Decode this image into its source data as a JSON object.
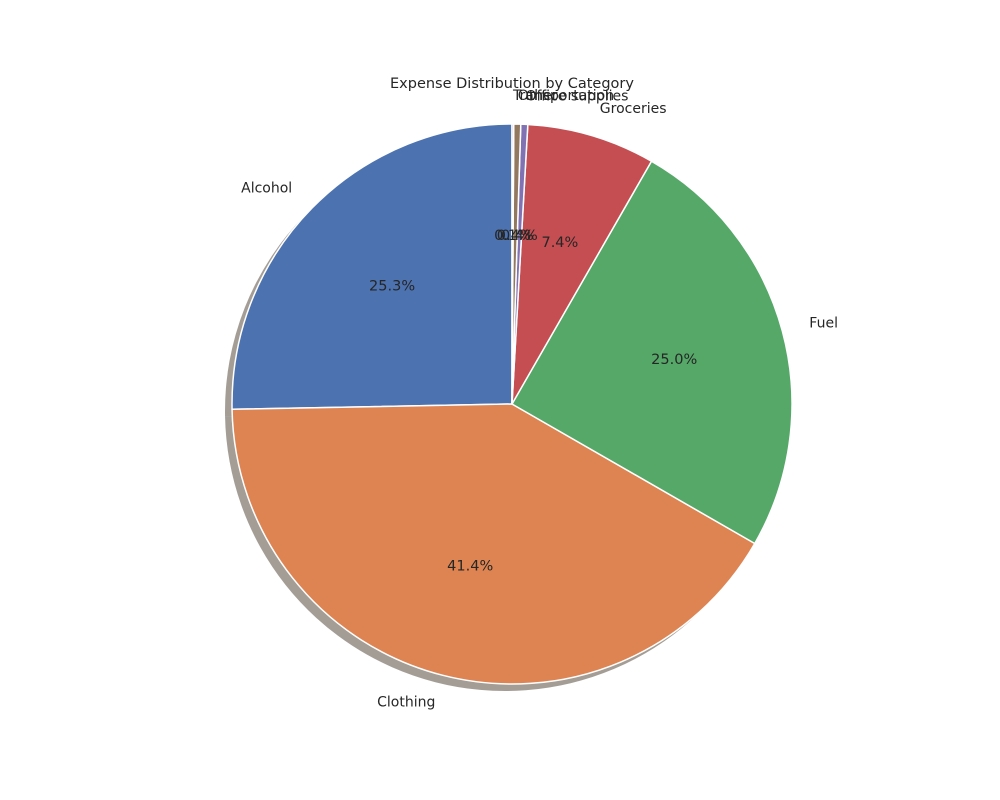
{
  "chart_data": {
    "type": "pie",
    "title": "Expense Distribution by Category",
    "categories": [
      "Alcohol",
      "Clothing",
      "Fuel",
      "Groceries",
      "Office supplies",
      "Other",
      "Transportation"
    ],
    "values": [
      25.3,
      41.4,
      25.0,
      7.4,
      0.4,
      0.4,
      0.1
    ],
    "percent_labels": [
      "25.3%",
      "41.4%",
      "25.0%",
      "7.4%",
      "0.4%",
      "0.4%",
      "0.1%"
    ],
    "colors": [
      "#4c72b0",
      "#dd8452",
      "#55a868",
      "#c44e52",
      "#8172b3",
      "#937860",
      "#da8bc3"
    ],
    "start_angle_deg": 90,
    "direction": "counterclockwise",
    "shadow": true,
    "wedge_edge_color": "#ffffff"
  }
}
